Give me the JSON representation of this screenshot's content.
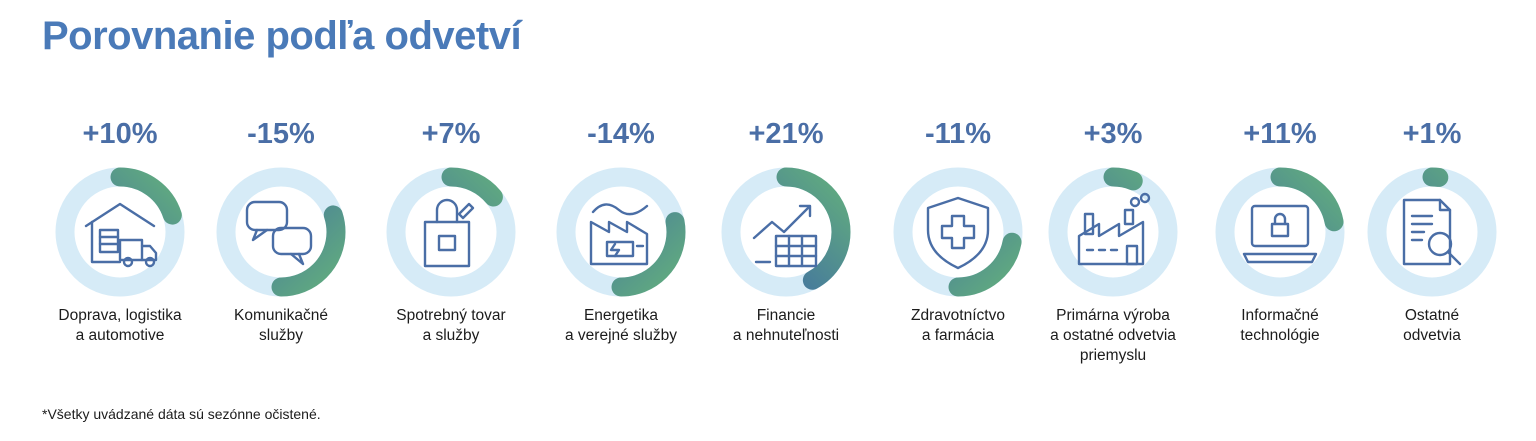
{
  "title": "Porovnanie podľa odvetví",
  "footnote": "*Všetky uvádzané dáta sú sezónne očistené.",
  "colors": {
    "title": "#4a7ab8",
    "value_text": "#4a6ea6",
    "ring_track": "#d6ebf7",
    "arc_gradient_start": "#3a63a9",
    "arc_gradient_end": "#62ad7e",
    "icon_stroke": "#4a6ea6"
  },
  "chart_data": {
    "type": "radial-bar",
    "title": "Porovnanie podľa odvetví",
    "categories": [
      "Doprava, logistika a automotive",
      "Komunikačné služby",
      "Spotrebný tovar a služby",
      "Energetika a verejné služby",
      "Financie a nehnuteľnosti",
      "Zdravotníctvo a farmácia",
      "Primárna výroba a ostatné odvetvia priemyslu",
      "Informačné technológie",
      "Ostatné odvetvia"
    ],
    "values": [
      10,
      -15,
      7,
      -14,
      21,
      -11,
      3,
      11,
      1
    ],
    "unit": "%",
    "arc_full_scale": 50
  },
  "sectors": [
    {
      "value_label": "+10%",
      "label_lines": [
        "Doprava, logistika",
        "a automotive"
      ],
      "icon": "warehouse-truck-icon"
    },
    {
      "value_label": "-15%",
      "label_lines": [
        "Komunikačné",
        "služby"
      ],
      "icon": "chat-bubbles-icon"
    },
    {
      "value_label": "+7%",
      "label_lines": [
        "Spotrebný tovar",
        "a služby"
      ],
      "icon": "shopping-bag-icon"
    },
    {
      "value_label": "-14%",
      "label_lines": [
        "Energetika",
        "a verejné služby"
      ],
      "icon": "power-plant-icon"
    },
    {
      "value_label": "+21%",
      "label_lines": [
        "Financie",
        "a nehnuteľnosti"
      ],
      "icon": "growth-chart-icon"
    },
    {
      "value_label": "-11%",
      "label_lines": [
        "Zdravotníctvo",
        "a farmácia"
      ],
      "icon": "medical-shield-icon"
    },
    {
      "value_label": "+3%",
      "label_lines": [
        "Primárna výroba",
        "a ostatné odvetvia",
        "priemyslu"
      ],
      "icon": "factory-icon"
    },
    {
      "value_label": "+11%",
      "label_lines": [
        "Informačné",
        "technológie"
      ],
      "icon": "laptop-lock-icon"
    },
    {
      "value_label": "+1%",
      "label_lines": [
        "Ostatné",
        "odvetvia"
      ],
      "icon": "document-search-icon"
    }
  ]
}
